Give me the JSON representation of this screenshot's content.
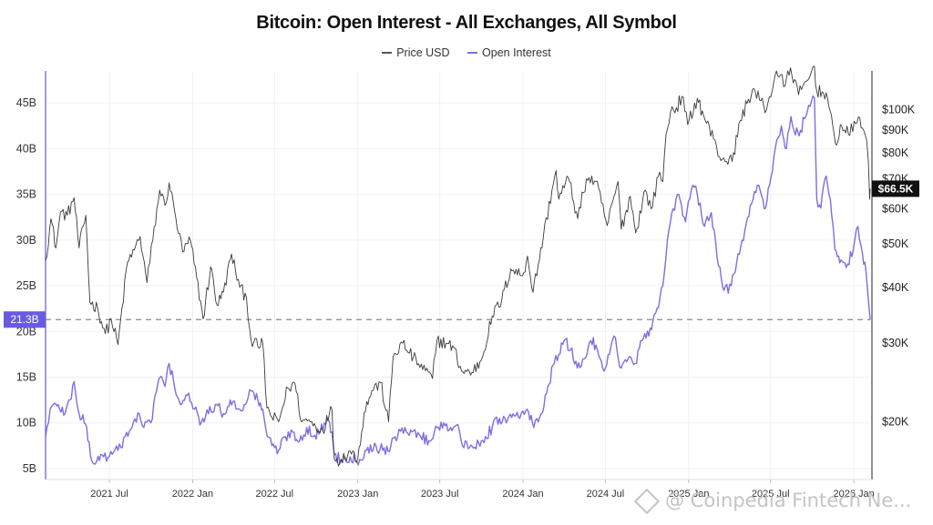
{
  "title": "Bitcoin: Open Interest - All Exchanges, All Symbol",
  "legend": [
    {
      "label": "Price USD",
      "color": "#3a3a3a"
    },
    {
      "label": "Open Interest",
      "color": "#7b6fe0"
    }
  ],
  "watermark": "@ Coinpedia Fintech Ne...",
  "chart_data": {
    "type": "line",
    "title": "Bitcoin: Open Interest - All Exchanges, All Symbol",
    "x_ticks": [
      "2021 Jul",
      "2022 Jan",
      "2022 Jul",
      "2023 Jan",
      "2023 Jul",
      "2024 Jan",
      "2024 Jul",
      "2025 Jan",
      "2025 Jul",
      "2026 Jan"
    ],
    "x_range": [
      "2021-02-10",
      "2026-02-06"
    ],
    "y_left_ticks": [
      "5B",
      "10B",
      "15B",
      "20B",
      "25B",
      "30B",
      "35B",
      "40B",
      "45B"
    ],
    "y_left_range": [
      4,
      48.5
    ],
    "y_right_ticks": [
      "$20K",
      "$30K",
      "$40K",
      "$50K",
      "$60K",
      "$70K",
      "$80K",
      "$90K",
      "$100K"
    ],
    "y_right_scale": "log",
    "y_right_range": [
      15000,
      122000
    ],
    "current_oi_label": "21.3B",
    "current_oi_value": 21.3,
    "current_price_label": "$66.5K",
    "current_price_value": 66500,
    "grid": true,
    "legend_position": "top-center",
    "series": [
      {
        "name": "Open Interest",
        "axis": "left",
        "color": "#7b6fe0",
        "points": [
          [
            "2021-02-10",
            8.5
          ],
          [
            "2021-02-20",
            11.5
          ],
          [
            "2021-03-10",
            12.0
          ],
          [
            "2021-03-25",
            11.0
          ],
          [
            "2021-04-05",
            12.5
          ],
          [
            "2021-04-14",
            14.5
          ],
          [
            "2021-04-25",
            11.0
          ],
          [
            "2021-05-12",
            9.5
          ],
          [
            "2021-05-20",
            6.5
          ],
          [
            "2021-05-28",
            5.5
          ],
          [
            "2021-06-15",
            6.5
          ],
          [
            "2021-07-01",
            6.3
          ],
          [
            "2021-07-20",
            7.0
          ],
          [
            "2021-08-05",
            8.5
          ],
          [
            "2021-08-20",
            9.5
          ],
          [
            "2021-09-05",
            11.0
          ],
          [
            "2021-09-15",
            9.5
          ],
          [
            "2021-10-01",
            10.0
          ],
          [
            "2021-10-10",
            13.0
          ],
          [
            "2021-10-21",
            15.0
          ],
          [
            "2021-11-01",
            14.0
          ],
          [
            "2021-11-10",
            16.5
          ],
          [
            "2021-11-20",
            14.5
          ],
          [
            "2021-12-05",
            12.0
          ],
          [
            "2021-12-20",
            13.0
          ],
          [
            "2022-01-05",
            11.5
          ],
          [
            "2022-01-20",
            10.0
          ],
          [
            "2022-02-05",
            11.0
          ],
          [
            "2022-02-20",
            12.0
          ],
          [
            "2022-03-10",
            11.0
          ],
          [
            "2022-03-25",
            12.5
          ],
          [
            "2022-04-10",
            11.5
          ],
          [
            "2022-04-25",
            12.0
          ],
          [
            "2022-05-10",
            13.5
          ],
          [
            "2022-05-25",
            12.5
          ],
          [
            "2022-06-05",
            11.5
          ],
          [
            "2022-06-15",
            8.5
          ],
          [
            "2022-06-25",
            7.5
          ],
          [
            "2022-07-10",
            7.0
          ],
          [
            "2022-07-25",
            8.5
          ],
          [
            "2022-08-10",
            9.0
          ],
          [
            "2022-08-25",
            8.0
          ],
          [
            "2022-09-10",
            9.5
          ],
          [
            "2022-09-25",
            8.5
          ],
          [
            "2022-10-10",
            9.0
          ],
          [
            "2022-10-25",
            10.5
          ],
          [
            "2022-11-05",
            9.0
          ],
          [
            "2022-11-10",
            6.5
          ],
          [
            "2022-11-25",
            6.0
          ],
          [
            "2022-12-15",
            6.3
          ],
          [
            "2023-01-05",
            6.0
          ],
          [
            "2023-01-20",
            7.0
          ],
          [
            "2023-02-10",
            7.5
          ],
          [
            "2023-02-25",
            7.0
          ],
          [
            "2023-03-15",
            7.5
          ],
          [
            "2023-03-30",
            8.5
          ],
          [
            "2023-04-15",
            9.5
          ],
          [
            "2023-05-01",
            9.0
          ],
          [
            "2023-05-20",
            8.5
          ],
          [
            "2023-06-10",
            8.0
          ],
          [
            "2023-06-25",
            9.5
          ],
          [
            "2023-07-10",
            10.0
          ],
          [
            "2023-07-25",
            9.5
          ],
          [
            "2023-08-10",
            9.8
          ],
          [
            "2023-08-20",
            7.5
          ],
          [
            "2023-09-05",
            7.3
          ],
          [
            "2023-09-25",
            7.8
          ],
          [
            "2023-10-10",
            8.5
          ],
          [
            "2023-10-25",
            9.5
          ],
          [
            "2023-11-10",
            10.5
          ],
          [
            "2023-11-25",
            10.0
          ],
          [
            "2023-12-10",
            11.0
          ],
          [
            "2023-12-25",
            10.5
          ],
          [
            "2024-01-10",
            11.5
          ],
          [
            "2024-01-25",
            9.5
          ],
          [
            "2024-02-10",
            11.0
          ],
          [
            "2024-02-25",
            14.0
          ],
          [
            "2024-03-10",
            16.5
          ],
          [
            "2024-03-20",
            17.5
          ],
          [
            "2024-04-01",
            19.0
          ],
          [
            "2024-04-15",
            18.0
          ],
          [
            "2024-04-30",
            16.0
          ],
          [
            "2024-05-15",
            17.0
          ],
          [
            "2024-05-30",
            19.0
          ],
          [
            "2024-06-10",
            18.5
          ],
          [
            "2024-06-25",
            16.0
          ],
          [
            "2024-07-10",
            17.5
          ],
          [
            "2024-07-20",
            19.5
          ],
          [
            "2024-08-05",
            16.0
          ],
          [
            "2024-08-20",
            17.0
          ],
          [
            "2024-09-05",
            16.5
          ],
          [
            "2024-09-20",
            19.0
          ],
          [
            "2024-10-05",
            19.5
          ],
          [
            "2024-10-20",
            22.0
          ],
          [
            "2024-11-05",
            25.0
          ],
          [
            "2024-11-15",
            30.0
          ],
          [
            "2024-11-25",
            33.0
          ],
          [
            "2024-12-10",
            35.0
          ],
          [
            "2024-12-25",
            32.0
          ],
          [
            "2025-01-10",
            36.0
          ],
          [
            "2025-01-20",
            35.0
          ],
          [
            "2025-02-05",
            31.5
          ],
          [
            "2025-02-20",
            33.0
          ],
          [
            "2025-03-05",
            28.0
          ],
          [
            "2025-03-20",
            24.5
          ],
          [
            "2025-04-05",
            25.0
          ],
          [
            "2025-04-20",
            28.5
          ],
          [
            "2025-05-05",
            31.0
          ],
          [
            "2025-05-20",
            34.0
          ],
          [
            "2025-06-05",
            36.0
          ],
          [
            "2025-06-20",
            33.5
          ],
          [
            "2025-07-05",
            37.5
          ],
          [
            "2025-07-15",
            41.0
          ],
          [
            "2025-07-25",
            42.5
          ],
          [
            "2025-08-05",
            40.0
          ],
          [
            "2025-08-15",
            43.5
          ],
          [
            "2025-08-25",
            41.5
          ],
          [
            "2025-09-05",
            42.0
          ],
          [
            "2025-09-20",
            44.0
          ],
          [
            "2025-10-06",
            45.5
          ],
          [
            "2025-10-11",
            34.5
          ],
          [
            "2025-10-20",
            33.5
          ],
          [
            "2025-11-01",
            37.0
          ],
          [
            "2025-11-10",
            34.5
          ],
          [
            "2025-11-20",
            29.0
          ],
          [
            "2025-12-01",
            27.5
          ],
          [
            "2025-12-15",
            27.0
          ],
          [
            "2025-12-31",
            29.0
          ],
          [
            "2026-01-10",
            31.5
          ],
          [
            "2026-01-20",
            28.5
          ],
          [
            "2026-01-28",
            26.5
          ],
          [
            "2026-02-02",
            23.5
          ],
          [
            "2026-02-06",
            21.3
          ]
        ]
      },
      {
        "name": "Price USD",
        "axis": "right",
        "color": "#3a3a3a",
        "points": [
          [
            "2021-02-10",
            46000
          ],
          [
            "2021-02-22",
            57000
          ],
          [
            "2021-03-05",
            49000
          ],
          [
            "2021-03-15",
            59000
          ],
          [
            "2021-03-30",
            58000
          ],
          [
            "2021-04-14",
            63500
          ],
          [
            "2021-04-25",
            49000
          ],
          [
            "2021-05-10",
            58000
          ],
          [
            "2021-05-19",
            37000
          ],
          [
            "2021-06-05",
            36000
          ],
          [
            "2021-06-22",
            31500
          ],
          [
            "2021-07-05",
            34000
          ],
          [
            "2021-07-20",
            29800
          ],
          [
            "2021-08-10",
            45500
          ],
          [
            "2021-08-25",
            48500
          ],
          [
            "2021-09-07",
            52000
          ],
          [
            "2021-09-22",
            41000
          ],
          [
            "2021-10-05",
            51000
          ],
          [
            "2021-10-20",
            66000
          ],
          [
            "2021-11-01",
            61000
          ],
          [
            "2021-11-10",
            68500
          ],
          [
            "2021-11-25",
            57000
          ],
          [
            "2021-12-10",
            48000
          ],
          [
            "2021-12-27",
            51000
          ],
          [
            "2022-01-10",
            42000
          ],
          [
            "2022-01-24",
            34000
          ],
          [
            "2022-02-10",
            44500
          ],
          [
            "2022-02-24",
            36500
          ],
          [
            "2022-03-10",
            39000
          ],
          [
            "2022-03-28",
            47500
          ],
          [
            "2022-04-15",
            40000
          ],
          [
            "2022-04-30",
            38000
          ],
          [
            "2022-05-10",
            30500
          ],
          [
            "2022-05-25",
            29500
          ],
          [
            "2022-06-05",
            30000
          ],
          [
            "2022-06-14",
            21500
          ],
          [
            "2022-06-25",
            20500
          ],
          [
            "2022-07-10",
            20000
          ],
          [
            "2022-07-30",
            23800
          ],
          [
            "2022-08-15",
            24400
          ],
          [
            "2022-08-30",
            20000
          ],
          [
            "2022-09-15",
            20200
          ],
          [
            "2022-09-30",
            19500
          ],
          [
            "2022-10-15",
            19200
          ],
          [
            "2022-10-30",
            20800
          ],
          [
            "2022-11-05",
            21300
          ],
          [
            "2022-11-10",
            16500
          ],
          [
            "2022-11-25",
            16500
          ],
          [
            "2022-12-15",
            17200
          ],
          [
            "2023-01-01",
            16600
          ],
          [
            "2023-01-15",
            21000
          ],
          [
            "2023-02-01",
            23500
          ],
          [
            "2023-02-20",
            24500
          ],
          [
            "2023-03-10",
            20000
          ],
          [
            "2023-03-20",
            28000
          ],
          [
            "2023-04-10",
            30000
          ],
          [
            "2023-04-25",
            28500
          ],
          [
            "2023-05-15",
            27000
          ],
          [
            "2023-06-15",
            25000
          ],
          [
            "2023-06-25",
            30500
          ],
          [
            "2023-07-15",
            30000
          ],
          [
            "2023-08-01",
            29300
          ],
          [
            "2023-08-18",
            26000
          ],
          [
            "2023-09-10",
            25800
          ],
          [
            "2023-10-01",
            27500
          ],
          [
            "2023-10-25",
            34500
          ],
          [
            "2023-11-15",
            37500
          ],
          [
            "2023-12-05",
            44000
          ],
          [
            "2023-12-31",
            42500
          ],
          [
            "2024-01-11",
            47000
          ],
          [
            "2024-01-23",
            39000
          ],
          [
            "2024-02-15",
            52000
          ],
          [
            "2024-03-05",
            66000
          ],
          [
            "2024-03-14",
            73000
          ],
          [
            "2024-03-20",
            63000
          ],
          [
            "2024-04-10",
            70500
          ],
          [
            "2024-05-01",
            57000
          ],
          [
            "2024-05-20",
            70000
          ],
          [
            "2024-06-10",
            69000
          ],
          [
            "2024-07-05",
            55000
          ],
          [
            "2024-07-29",
            69000
          ],
          [
            "2024-08-05",
            54000
          ],
          [
            "2024-08-25",
            64000
          ],
          [
            "2024-09-06",
            53000
          ],
          [
            "2024-09-27",
            66000
          ],
          [
            "2024-10-10",
            60000
          ],
          [
            "2024-10-29",
            72500
          ],
          [
            "2024-11-05",
            69000
          ],
          [
            "2024-11-12",
            88000
          ],
          [
            "2024-11-22",
            99000
          ],
          [
            "2024-12-05",
            101000
          ],
          [
            "2024-12-17",
            107000
          ],
          [
            "2024-12-30",
            92500
          ],
          [
            "2025-01-20",
            106000
          ],
          [
            "2025-02-03",
            97000
          ],
          [
            "2025-02-25",
            86000
          ],
          [
            "2025-03-10",
            78500
          ],
          [
            "2025-04-07",
            76500
          ],
          [
            "2025-04-25",
            94500
          ],
          [
            "2025-05-22",
            111000
          ],
          [
            "2025-06-22",
            100000
          ],
          [
            "2025-07-14",
            122000
          ],
          [
            "2025-08-02",
            113000
          ],
          [
            "2025-08-14",
            124000
          ],
          [
            "2025-09-01",
            108000
          ],
          [
            "2025-09-20",
            116000
          ],
          [
            "2025-10-06",
            125000
          ],
          [
            "2025-10-11",
            110000
          ],
          [
            "2025-11-01",
            109000
          ],
          [
            "2025-11-21",
            84000
          ],
          [
            "2025-12-05",
            92000
          ],
          [
            "2025-12-20",
            88000
          ],
          [
            "2026-01-05",
            93000
          ],
          [
            "2026-01-14",
            96000
          ],
          [
            "2026-01-26",
            88000
          ],
          [
            "2026-02-02",
            77000
          ],
          [
            "2026-02-05",
            63000
          ],
          [
            "2026-02-06",
            66500
          ]
        ]
      }
    ]
  }
}
